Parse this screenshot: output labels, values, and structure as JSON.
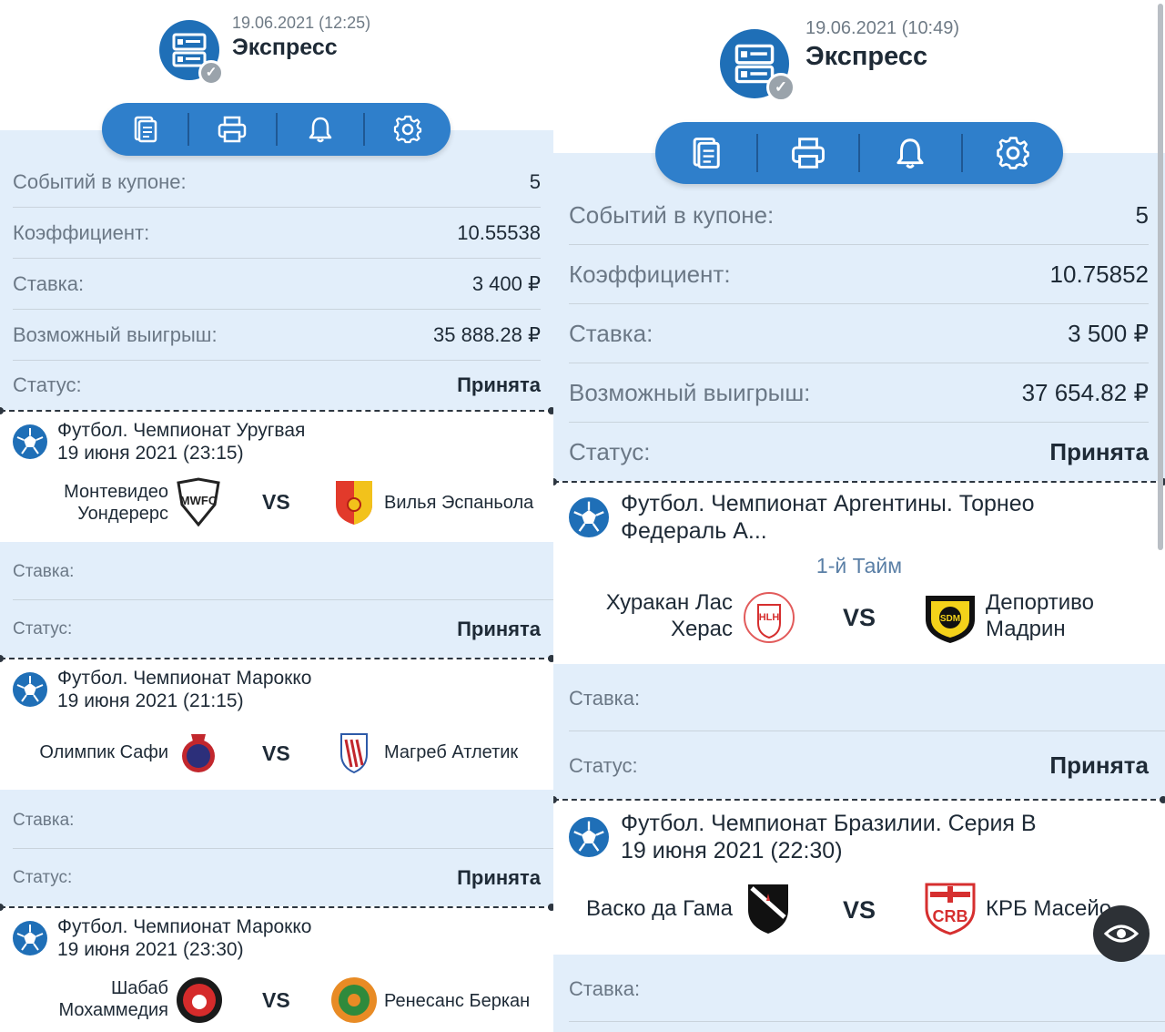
{
  "left": {
    "header": {
      "date": "19.06.2021 (12:25)",
      "title": "Экспресс"
    },
    "summary": [
      {
        "label": "Событий в купоне:",
        "value": "5"
      },
      {
        "label": "Коэффициент:",
        "value": "10.55538"
      },
      {
        "label": "Ставка:",
        "value": "3 400 ₽"
      },
      {
        "label": "Возможный выигрыш:",
        "value": "35 888.28 ₽"
      },
      {
        "label": "Статус:",
        "value": "Принята"
      }
    ],
    "matches": [
      {
        "title": "Футбол. Чемпионат Уругвая",
        "date": "19 июня 2021 (23:15)",
        "home": "Монтевидео Уондерерс",
        "vs": "VS",
        "away": "Вилья Эспаньола",
        "stake_label": "Ставка:",
        "stake_value": "",
        "status_label": "Статус:",
        "status_value": "Принята"
      },
      {
        "title": "Футбол. Чемпионат Марокко",
        "date": "19 июня 2021 (21:15)",
        "home": "Олимпик Сафи",
        "vs": "VS",
        "away": "Магреб Атлетик",
        "stake_label": "Ставка:",
        "stake_value": "",
        "status_label": "Статус:",
        "status_value": "Принята"
      },
      {
        "title": "Футбол. Чемпионат Марокко",
        "date": "19 июня 2021 (23:30)",
        "home": "Шабаб Мохаммедия",
        "vs": "VS",
        "away": "Ренесанс Беркан"
      }
    ]
  },
  "right": {
    "header": {
      "date": "19.06.2021 (10:49)",
      "title": "Экспресс"
    },
    "summary": [
      {
        "label": "Событий в купоне:",
        "value": "5"
      },
      {
        "label": "Коэффициент:",
        "value": "10.75852"
      },
      {
        "label": "Ставка:",
        "value": "3 500 ₽"
      },
      {
        "label": "Возможный выигрыш:",
        "value": "37 654.82 ₽"
      },
      {
        "label": "Статус:",
        "value": "Принята"
      }
    ],
    "matches": [
      {
        "title": "Футбол. Чемпионат Аргентины. Торнео Федераль А...",
        "date": "1-й Тайм",
        "home": "Хуракан Лас Херас",
        "vs": "VS",
        "away": "Депортиво Мадрин",
        "stake_label": "Ставка:",
        "stake_value": "",
        "status_label": "Статус:",
        "status_value": "Принята"
      },
      {
        "title": "Футбол. Чемпионат Бразилии. Серия B",
        "date": "19 июня 2021 (22:30)",
        "home": "Васко да Гама",
        "vs": "VS",
        "away": "КРБ Масейо",
        "stake_label": "Ставка:"
      }
    ]
  },
  "toolbar_icons": [
    "coupon-list-icon",
    "print-icon",
    "bell-icon",
    "gear-icon"
  ],
  "overlay_icon": "eye-icon",
  "colors": {
    "accent": "#2f7fcb",
    "background_blue": "#e2eefa",
    "text": "#1e2a36",
    "muted": "#6b7886"
  }
}
